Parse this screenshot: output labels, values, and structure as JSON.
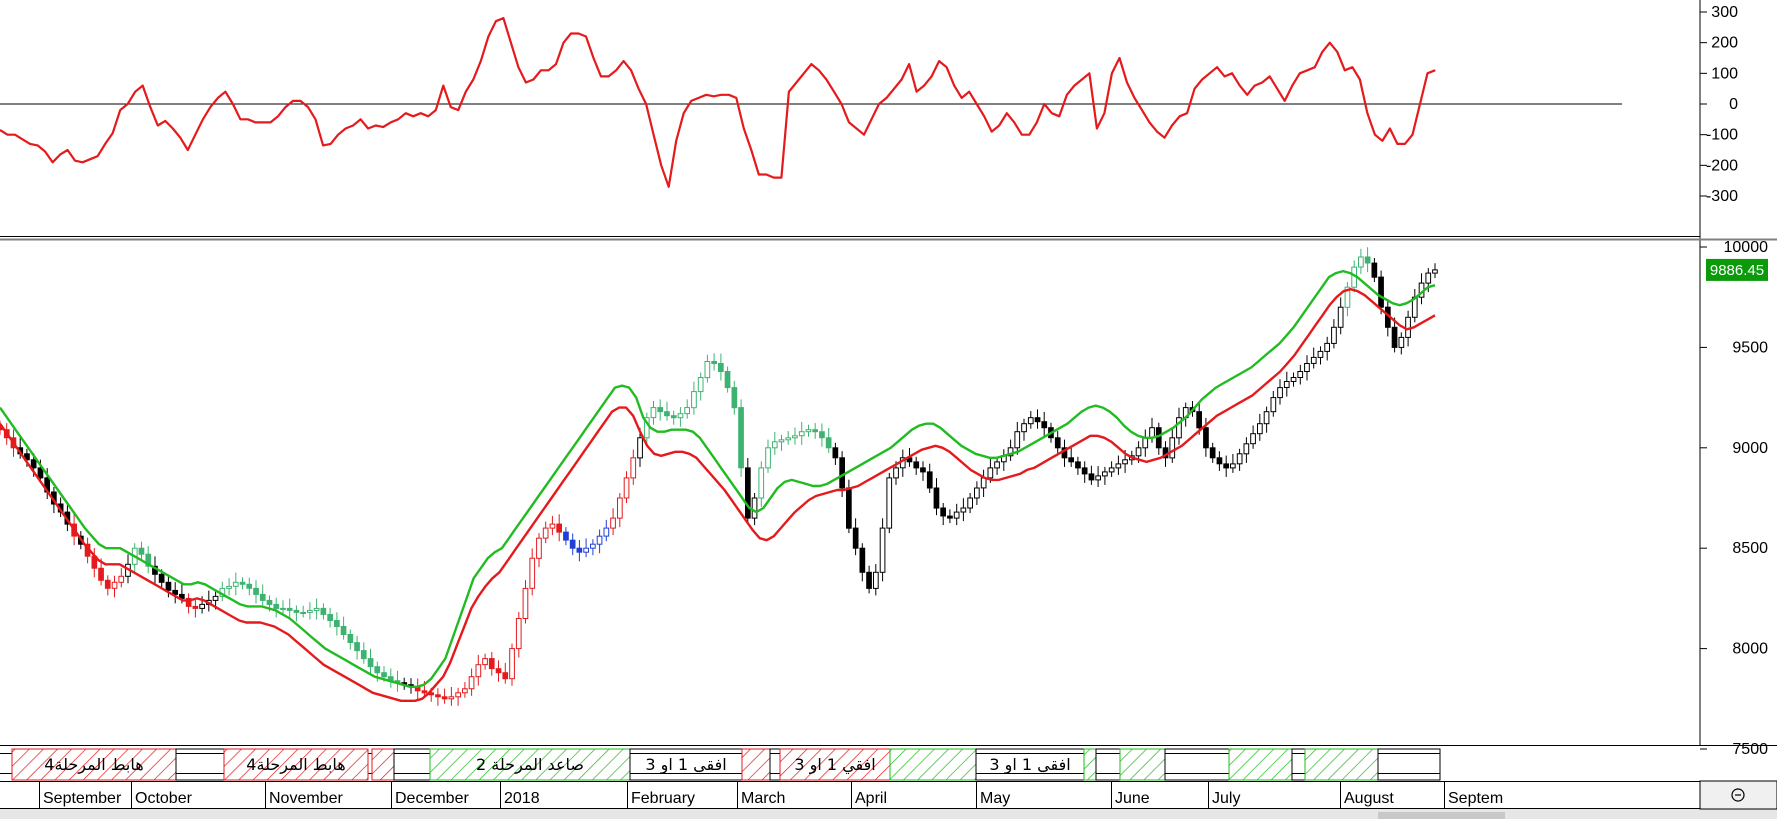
{
  "chart_data": [
    {
      "type": "line",
      "panel": "oscillator",
      "ylim": [
        -330,
        330
      ],
      "yticks": [
        "300",
        "200",
        "100",
        "0",
        "-100",
        "-200",
        "-300"
      ],
      "ytick_values": [
        300,
        200,
        100,
        0,
        -100,
        -200,
        -300
      ],
      "zero_line": true,
      "series": [
        {
          "color": "#e41a1c",
          "values": [
            -85,
            -100,
            -100,
            -115,
            -130,
            -135,
            -155,
            -190,
            -165,
            -150,
            -185,
            -190,
            -180,
            -170,
            -130,
            -95,
            -20,
            0,
            40,
            60,
            -10,
            -70,
            -55,
            -80,
            -110,
            -150,
            -100,
            -50,
            -10,
            20,
            40,
            0,
            -50,
            -50,
            -60,
            -60,
            -60,
            -40,
            -10,
            10,
            10,
            -10,
            -50,
            -135,
            -130,
            -100,
            -80,
            -70,
            -50,
            -80,
            -70,
            -75,
            -60,
            -50,
            -30,
            -40,
            -30,
            -40,
            -20,
            60,
            -10,
            -20,
            40,
            80,
            140,
            220,
            270,
            280,
            200,
            120,
            70,
            80,
            110,
            110,
            130,
            200,
            230,
            230,
            220,
            150,
            90,
            90,
            110,
            140,
            110,
            50,
            0,
            -100,
            -200,
            -270,
            -120,
            -30,
            10,
            20,
            30,
            25,
            30,
            30,
            20,
            -80,
            -150,
            -230,
            -230,
            -240,
            -240,
            40,
            70,
            100,
            130,
            110,
            80,
            40,
            0,
            -60,
            -80,
            -100,
            -50,
            0,
            20,
            50,
            80,
            130,
            40,
            60,
            90,
            140,
            120,
            60,
            20,
            40,
            0,
            -40,
            -90,
            -70,
            -30,
            -60,
            -100,
            -100,
            -60,
            0,
            -30,
            -40,
            30,
            60,
            80,
            100,
            -80,
            -30,
            100,
            150,
            70,
            20,
            -20,
            -60,
            -90,
            -110,
            -70,
            -40,
            -30,
            50,
            80,
            100,
            120,
            90,
            100,
            60,
            30,
            60,
            70,
            90,
            50,
            10,
            60,
            100,
            110,
            120,
            170,
            200,
            170,
            110,
            120,
            80,
            -30,
            -100,
            -120,
            -80,
            -130,
            -130,
            -100,
            0,
            100,
            110
          ]
        }
      ]
    },
    {
      "type": "candlestick",
      "panel": "price",
      "ylim": [
        7470,
        10150
      ],
      "yticks": [
        "10000",
        "9500",
        "9000",
        "8500",
        "8000",
        "7500"
      ],
      "ytick_values": [
        10000,
        9500,
        9000,
        8500,
        8000,
        7500
      ],
      "last_value_label": "9886.45",
      "close": [
        9090,
        9050,
        9000,
        8970,
        8940,
        8900,
        8850,
        8780,
        8720,
        8680,
        8620,
        8560,
        8520,
        8460,
        8400,
        8340,
        8300,
        8330,
        8360,
        8420,
        8500,
        8470,
        8410,
        8370,
        8330,
        8290,
        8270,
        8250,
        8210,
        8200,
        8220,
        8240,
        8260,
        8300,
        8310,
        8330,
        8320,
        8300,
        8270,
        8240,
        8220,
        8200,
        8200,
        8190,
        8180,
        8180,
        8190,
        8200,
        8170,
        8140,
        8110,
        8070,
        8030,
        7990,
        7950,
        7910,
        7880,
        7860,
        7840,
        7830,
        7820,
        7810,
        7790,
        7780,
        7770,
        7760,
        7750,
        7760,
        7780,
        7800,
        7860,
        7920,
        7950,
        7900,
        7880,
        7850,
        8000,
        8150,
        8300,
        8450,
        8550,
        8600,
        8620,
        8580,
        8540,
        8500,
        8480,
        8500,
        8520,
        8560,
        8600,
        8650,
        8750,
        8850,
        8950,
        9050,
        9150,
        9200,
        9180,
        9160,
        9150,
        9170,
        9200,
        9280,
        9350,
        9430,
        9420,
        9380,
        9300,
        9200,
        8900,
        8650,
        8750,
        8900,
        9000,
        9030,
        9040,
        9050,
        9060,
        9080,
        9090,
        9080,
        9050,
        9000,
        8950,
        8800,
        8600,
        8500,
        8380,
        8300,
        8380,
        8600,
        8850,
        8900,
        8950,
        8930,
        8900,
        8880,
        8800,
        8700,
        8660,
        8650,
        8680,
        8700,
        8750,
        8800,
        8850,
        8900,
        8930,
        8960,
        9000,
        9080,
        9120,
        9150,
        9130,
        9100,
        9050,
        9000,
        8950,
        8930,
        8900,
        8870,
        8840,
        8860,
        8880,
        8900,
        8920,
        8940,
        8960,
        9000,
        9050,
        9100,
        9000,
        8950,
        9050,
        9150,
        9200,
        9180,
        9100,
        9000,
        8950,
        8920,
        8900,
        8920,
        8970,
        9020,
        9070,
        9120,
        9180,
        9250,
        9300,
        9330,
        9350,
        9380,
        9420,
        9450,
        9480,
        9520,
        9600,
        9700,
        9800,
        9900,
        9950,
        9920,
        9850,
        9700,
        9600,
        9500,
        9550,
        9650,
        9750,
        9820,
        9870,
        9886
      ]
    },
    {
      "type": "line",
      "panel": "price",
      "series": [
        {
          "color": "#22bb22",
          "values": [
            9200,
            9150,
            9100,
            9050,
            9000,
            8950,
            8900,
            8850,
            8800,
            8750,
            8700,
            8650,
            8600,
            8560,
            8520,
            8500,
            8500,
            8500,
            8480,
            8460,
            8440,
            8420,
            8400,
            8380,
            8360,
            8340,
            8320,
            8320,
            8330,
            8320,
            8300,
            8280,
            8260,
            8240,
            8220,
            8210,
            8210,
            8210,
            8200,
            8190,
            8170,
            8150,
            8120,
            8090,
            8060,
            8030,
            8000,
            7980,
            7960,
            7940,
            7920,
            7900,
            7880,
            7860,
            7850,
            7840,
            7830,
            7820,
            7810,
            7810,
            7820,
            7850,
            7900,
            7950,
            8050,
            8150,
            8250,
            8350,
            8400,
            8450,
            8480,
            8500,
            8550,
            8600,
            8650,
            8700,
            8750,
            8800,
            8850,
            8900,
            8950,
            9000,
            9050,
            9100,
            9150,
            9200,
            9250,
            9300,
            9310,
            9300,
            9250,
            9150,
            9100,
            9080,
            9080,
            9090,
            9090,
            9090,
            9080,
            9050,
            9000,
            8950,
            8900,
            8850,
            8800,
            8750,
            8700,
            8680,
            8700,
            8750,
            8800,
            8830,
            8840,
            8830,
            8820,
            8810,
            8810,
            8820,
            8840,
            8860,
            8880,
            8900,
            8920,
            8940,
            8960,
            8980,
            9000,
            9030,
            9060,
            9090,
            9110,
            9120,
            9120,
            9100,
            9070,
            9040,
            9010,
            8990,
            8970,
            8960,
            8950,
            8950,
            8960,
            8970,
            8980,
            9000,
            9020,
            9040,
            9060,
            9080,
            9100,
            9120,
            9150,
            9180,
            9200,
            9210,
            9200,
            9180,
            9150,
            9110,
            9080,
            9060,
            9050,
            9050,
            9060,
            9080,
            9100,
            9130,
            9160,
            9200,
            9240,
            9270,
            9300,
            9320,
            9340,
            9360,
            9380,
            9400,
            9430,
            9460,
            9490,
            9520,
            9560,
            9600,
            9650,
            9700,
            9750,
            9800,
            9850,
            9870,
            9880,
            9870,
            9850,
            9820,
            9790,
            9760,
            9740,
            9720,
            9710,
            9720,
            9740,
            9770,
            9800,
            9810
          ]
        },
        {
          "color": "#e41a1c",
          "values": [
            9120,
            9070,
            9020,
            8970,
            8920,
            8870,
            8820,
            8770,
            8720,
            8670,
            8620,
            8570,
            8520,
            8480,
            8440,
            8420,
            8420,
            8420,
            8400,
            8380,
            8360,
            8340,
            8320,
            8300,
            8280,
            8260,
            8240,
            8240,
            8250,
            8240,
            8220,
            8200,
            8180,
            8160,
            8140,
            8130,
            8130,
            8130,
            8120,
            8110,
            8090,
            8070,
            8040,
            8010,
            7980,
            7950,
            7920,
            7900,
            7880,
            7860,
            7840,
            7820,
            7800,
            7780,
            7770,
            7760,
            7750,
            7740,
            7740,
            7740,
            7750,
            7780,
            7820,
            7860,
            7930,
            8020,
            8110,
            8200,
            8260,
            8310,
            8350,
            8380,
            8430,
            8480,
            8530,
            8580,
            8630,
            8680,
            8730,
            8780,
            8830,
            8880,
            8930,
            8980,
            9030,
            9080,
            9130,
            9180,
            9200,
            9200,
            9160,
            9080,
            9010,
            8970,
            8960,
            8970,
            8980,
            8980,
            8970,
            8950,
            8910,
            8870,
            8830,
            8790,
            8740,
            8690,
            8640,
            8590,
            8550,
            8540,
            8560,
            8600,
            8640,
            8680,
            8710,
            8740,
            8760,
            8770,
            8780,
            8790,
            8790,
            8800,
            8810,
            8830,
            8850,
            8870,
            8890,
            8910,
            8930,
            8950,
            8970,
            8990,
            9000,
            9010,
            9000,
            8980,
            8950,
            8920,
            8890,
            8870,
            8850,
            8840,
            8840,
            8850,
            8860,
            8870,
            8890,
            8900,
            8920,
            8940,
            8960,
            8980,
            9000,
            9020,
            9040,
            9060,
            9060,
            9050,
            9030,
            9000,
            8970,
            8950,
            8940,
            8930,
            8940,
            8950,
            8970,
            8990,
            9010,
            9040,
            9070,
            9100,
            9130,
            9160,
            9180,
            9200,
            9220,
            9240,
            9260,
            9290,
            9320,
            9350,
            9380,
            9420,
            9460,
            9510,
            9560,
            9610,
            9660,
            9710,
            9750,
            9780,
            9790,
            9780,
            9760,
            9730,
            9700,
            9670,
            9640,
            9610,
            9590,
            9600,
            9620,
            9640,
            9660
          ]
        }
      ]
    }
  ],
  "x_axis": {
    "months": [
      {
        "label": "September",
        "day": 40
      },
      {
        "label": "October",
        "day": 132
      },
      {
        "label": "November",
        "day": 266
      },
      {
        "label": "December",
        "day": 392
      },
      {
        "label": "2018",
        "day": 501
      },
      {
        "label": "February",
        "day": 628
      },
      {
        "label": "March",
        "day": 738
      },
      {
        "label": "April",
        "day": 852
      },
      {
        "label": "May",
        "day": 977
      },
      {
        "label": "June",
        "day": 1112
      },
      {
        "label": "July",
        "day": 1209
      },
      {
        "label": "August",
        "day": 1341
      },
      {
        "label": "Septem",
        "day": 1445
      }
    ]
  },
  "phase_band": {
    "segments": [
      {
        "label": "هابط المرحلة4",
        "type": "down",
        "from": 12,
        "to": 176
      },
      {
        "label": "",
        "type": "neutral",
        "from": 176,
        "to": 224
      },
      {
        "label": "هابط المرحلة4",
        "type": "down",
        "from": 224,
        "to": 368
      },
      {
        "label": "",
        "type": "down",
        "from": 372,
        "to": 394
      },
      {
        "label": "",
        "type": "neutral",
        "from": 394,
        "to": 430
      },
      {
        "label": "صاعد المرحلة 2",
        "type": "up",
        "from": 430,
        "to": 630
      },
      {
        "label": "افقي 1 او 3",
        "type": "neutral",
        "from": 630,
        "to": 742
      },
      {
        "label": "",
        "type": "down",
        "from": 742,
        "to": 770
      },
      {
        "label": "",
        "type": "neutral",
        "from": 770,
        "to": 780
      },
      {
        "label": "افقي 1 او 3",
        "type": "down",
        "from": 780,
        "to": 890
      },
      {
        "label": "",
        "type": "up",
        "from": 890,
        "to": 976
      },
      {
        "label": "افقي 1 او 3",
        "type": "neutral",
        "from": 976,
        "to": 1084
      },
      {
        "label": "",
        "type": "up",
        "from": 1084,
        "to": 1096
      },
      {
        "label": "",
        "type": "neutral",
        "from": 1096,
        "to": 1120
      },
      {
        "label": "",
        "type": "up",
        "from": 1120,
        "to": 1165
      },
      {
        "label": "",
        "type": "neutral",
        "from": 1165,
        "to": 1229
      },
      {
        "label": "",
        "type": "up",
        "from": 1229,
        "to": 1292
      },
      {
        "label": "",
        "type": "neutral",
        "from": 1292,
        "to": 1305
      },
      {
        "label": "",
        "type": "up",
        "from": 1305,
        "to": 1378
      },
      {
        "label": "",
        "type": "neutral",
        "from": 1378,
        "to": 1440
      }
    ],
    "colors": {
      "up": "#22bb22",
      "down": "#e41a1c",
      "neutral": "#000000"
    }
  },
  "status_icon": "smiley-icon"
}
